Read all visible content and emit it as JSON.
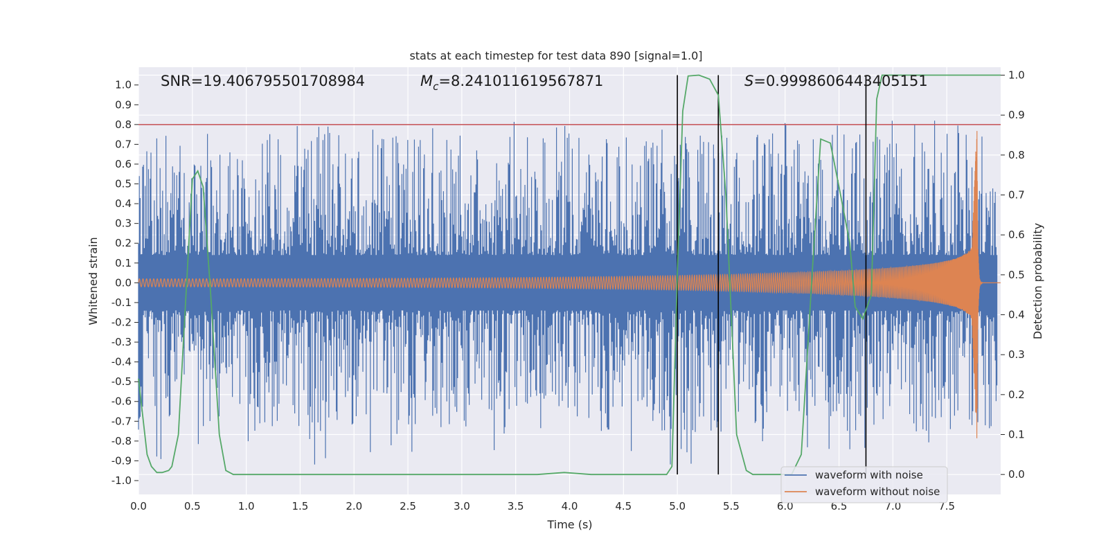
{
  "chart_data": {
    "type": "line",
    "title": "stats at each timestep for test data 890 [signal=1.0]",
    "xlabel": "Time (s)",
    "ylabel_left": "Whitened strain",
    "ylabel_right": "Detection probability",
    "xlim": [
      0,
      8.0
    ],
    "ylim_left": [
      -1.07,
      1.09
    ],
    "ylim_right": [
      -0.05,
      1.02
    ],
    "x_ticks": [
      "0.0",
      "0.5",
      "1.0",
      "1.5",
      "2.0",
      "2.5",
      "3.0",
      "3.5",
      "4.0",
      "4.5",
      "5.0",
      "5.5",
      "6.0",
      "6.5",
      "7.0",
      "7.5"
    ],
    "y_left_ticks": [
      "-1.0",
      "-0.9",
      "-0.8",
      "-0.7",
      "-0.6",
      "-0.5",
      "-0.4",
      "-0.3",
      "-0.2",
      "-0.1",
      "0.0",
      "0.1",
      "0.2",
      "0.3",
      "0.4",
      "0.5",
      "0.6",
      "0.7",
      "0.8",
      "0.9",
      "1.0"
    ],
    "y_right_ticks": [
      "0.0",
      "0.1",
      "0.2",
      "0.3",
      "0.4",
      "0.5",
      "0.6",
      "0.7",
      "0.8",
      "0.9",
      "1.0"
    ],
    "grid": true,
    "legend_position": "lower-right",
    "annotations": {
      "snr": "SNR=19.406795501708984",
      "mc_symbol": "M",
      "mc_sub": "c",
      "mc_value": "=8.241011619567871",
      "s_symbol": "S",
      "s_value": "=0.9998606443405151"
    },
    "threshold_line": {
      "y": 0.8,
      "color": "#c44e52"
    },
    "vertical_lines": [
      5.0,
      5.38,
      6.75
    ],
    "series": [
      {
        "name": "waveform with noise",
        "color": "#4c72b0",
        "envelope_min": -1.0,
        "envelope_max": 1.0,
        "description_points": []
      },
      {
        "name": "waveform without noise",
        "color": "#dd8452",
        "chirp_end_time": 7.78,
        "peak_amplitude": 0.83,
        "start_amplitude": 0.02
      },
      {
        "name": "detection probability",
        "color": "#55a868",
        "x": [
          0.0,
          0.08,
          0.12,
          0.17,
          0.22,
          0.28,
          0.31,
          0.37,
          0.42,
          0.5,
          0.55,
          0.6,
          0.67,
          0.75,
          0.81,
          0.88,
          1.0,
          2.0,
          3.0,
          3.7,
          3.95,
          4.2,
          4.9,
          4.95,
          5.0,
          5.05,
          5.1,
          5.2,
          5.3,
          5.38,
          5.45,
          5.55,
          5.64,
          5.7,
          5.85,
          6.06,
          6.15,
          6.25,
          6.33,
          6.42,
          6.5,
          6.6,
          6.65,
          6.72,
          6.8,
          6.85,
          6.9,
          7.0,
          7.5,
          8.0
        ],
        "y": [
          0.24,
          0.05,
          0.02,
          0.005,
          0.005,
          0.01,
          0.02,
          0.1,
          0.35,
          0.74,
          0.76,
          0.72,
          0.45,
          0.1,
          0.01,
          0.0,
          0.0,
          0.0,
          0.0,
          0.0,
          0.005,
          0.0,
          0.0,
          0.02,
          0.5,
          0.91,
          0.998,
          1.0,
          0.99,
          0.95,
          0.7,
          0.1,
          0.01,
          0.0,
          0.0,
          0.0,
          0.05,
          0.5,
          0.84,
          0.83,
          0.72,
          0.58,
          0.42,
          0.39,
          0.45,
          0.94,
          1.0,
          1.0,
          1.0,
          1.0
        ]
      }
    ]
  }
}
